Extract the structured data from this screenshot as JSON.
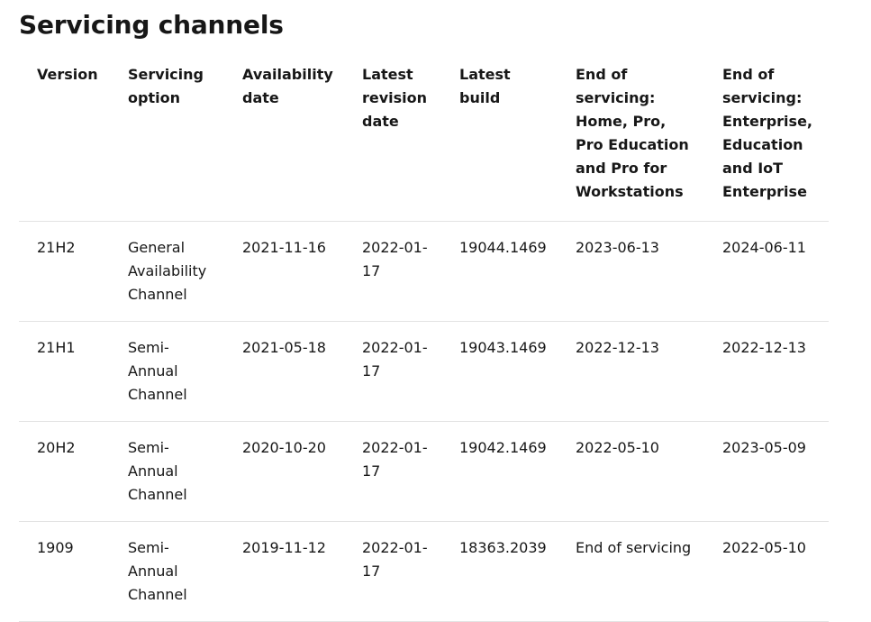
{
  "page": {
    "title": "Servicing channels"
  },
  "table": {
    "headers": [
      "Version",
      "Servicing option",
      "Availability date",
      "Latest revision date",
      "Latest build",
      "End of servicing: Home, Pro, Pro Education and Pro for Workstations",
      "End of servicing: Enterprise, Education and IoT Enterprise"
    ],
    "rows": [
      [
        "21H2",
        "General Availability Channel",
        "2021-11-16",
        "2022-01-17",
        "19044.1469",
        "2023-06-13",
        "2024-06-11"
      ],
      [
        "21H1",
        "Semi-Annual Channel",
        "2021-05-18",
        "2022-01-17",
        "19043.1469",
        "2022-12-13",
        "2022-12-13"
      ],
      [
        "20H2",
        "Semi-Annual Channel",
        "2020-10-20",
        "2022-01-17",
        "19042.1469",
        "2022-05-10",
        "2023-05-09"
      ],
      [
        "1909",
        "Semi-Annual Channel",
        "2019-11-12",
        "2022-01-17",
        "18363.2039",
        "End of servicing",
        "2022-05-10"
      ]
    ]
  }
}
